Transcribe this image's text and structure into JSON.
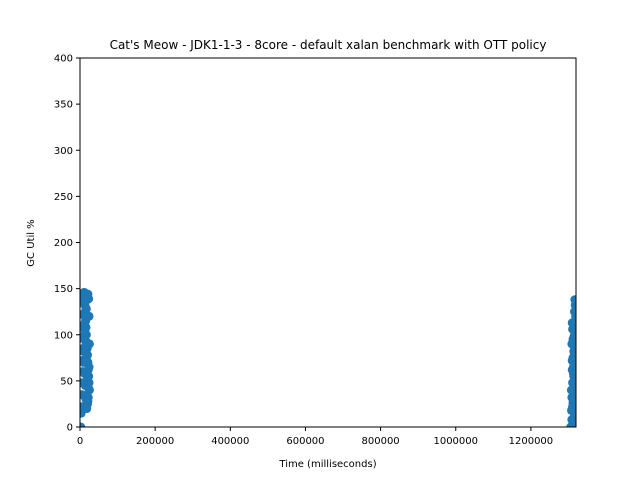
{
  "chart_data": {
    "type": "scatter",
    "title": "Cat's Meow - JDK1-1-3 - 8core -  default xalan benchmark with OTT policy",
    "xlabel": "Time (milliseconds)",
    "ylabel": "GC Util %",
    "xlim": [
      0,
      1320000
    ],
    "ylim": [
      0,
      400
    ],
    "xticks": [
      0,
      200000,
      400000,
      600000,
      800000,
      1000000,
      1200000
    ],
    "yticks": [
      0,
      50,
      100,
      150,
      200,
      250,
      300,
      350,
      400
    ],
    "grid": false,
    "marker_color": "#1f77b4",
    "series": [
      {
        "points": [
          [
            2000,
            0
          ],
          [
            3000,
            15
          ],
          [
            5000,
            22
          ],
          [
            6000,
            35
          ],
          [
            4000,
            48
          ],
          [
            7000,
            60
          ],
          [
            5000,
            72
          ],
          [
            8000,
            85
          ],
          [
            6000,
            98
          ],
          [
            9000,
            110
          ],
          [
            7000,
            122
          ],
          [
            10000,
            135
          ],
          [
            8000,
            143
          ],
          [
            11000,
            146
          ],
          [
            12000,
            140
          ],
          [
            13000,
            132
          ],
          [
            14000,
            125
          ],
          [
            15000,
            118
          ],
          [
            16000,
            108
          ],
          [
            17000,
            100
          ],
          [
            18000,
            92
          ],
          [
            19000,
            85
          ],
          [
            20000,
            78
          ],
          [
            21000,
            70
          ],
          [
            22000,
            62
          ],
          [
            23000,
            55
          ],
          [
            24000,
            48
          ],
          [
            25000,
            40
          ],
          [
            22000,
            32
          ],
          [
            20000,
            25
          ],
          [
            18000,
            20
          ],
          [
            16000,
            30
          ],
          [
            14000,
            45
          ],
          [
            12000,
            58
          ],
          [
            10000,
            70
          ],
          [
            9000,
            82
          ],
          [
            11000,
            95
          ],
          [
            13000,
            105
          ],
          [
            15000,
            115
          ],
          [
            17000,
            128
          ],
          [
            19000,
            138
          ],
          [
            21000,
            144
          ],
          [
            23000,
            139
          ],
          [
            24000,
            120
          ],
          [
            25000,
            90
          ],
          [
            24000,
            65
          ],
          [
            23000,
            42
          ],
          [
            21000,
            28
          ],
          [
            19000,
            55
          ],
          [
            17000,
            75
          ],
          [
            15000,
            88
          ],
          [
            12000,
            112
          ],
          [
            1306000,
            0
          ],
          [
            1310000,
            2
          ],
          [
            1313000,
            0
          ],
          [
            1308000,
            18
          ],
          [
            1312000,
            26
          ],
          [
            1309000,
            32
          ],
          [
            1315000,
            40
          ],
          [
            1311000,
            48
          ],
          [
            1314000,
            55
          ],
          [
            1310000,
            62
          ],
          [
            1316000,
            68
          ],
          [
            1312000,
            75
          ],
          [
            1314000,
            82
          ],
          [
            1309000,
            90
          ],
          [
            1315000,
            98
          ],
          [
            1311000,
            106
          ],
          [
            1310000,
            113
          ],
          [
            1316000,
            125
          ],
          [
            1318000,
            132
          ],
          [
            1320000,
            136
          ],
          [
            1317000,
            138
          ],
          [
            1313000,
            112
          ],
          [
            1312000,
            95
          ],
          [
            1316000,
            80
          ],
          [
            1318000,
            70
          ],
          [
            1313000,
            58
          ],
          [
            1317000,
            45
          ],
          [
            1314000,
            30
          ],
          [
            1311000,
            22
          ],
          [
            1315000,
            15
          ],
          [
            1309000,
            8
          ],
          [
            1318000,
            52
          ],
          [
            1310000,
            72
          ],
          [
            1316000,
            100
          ],
          [
            1319000,
            120
          ],
          [
            1308000,
            40
          ],
          [
            1314000,
            66
          ]
        ]
      }
    ]
  }
}
